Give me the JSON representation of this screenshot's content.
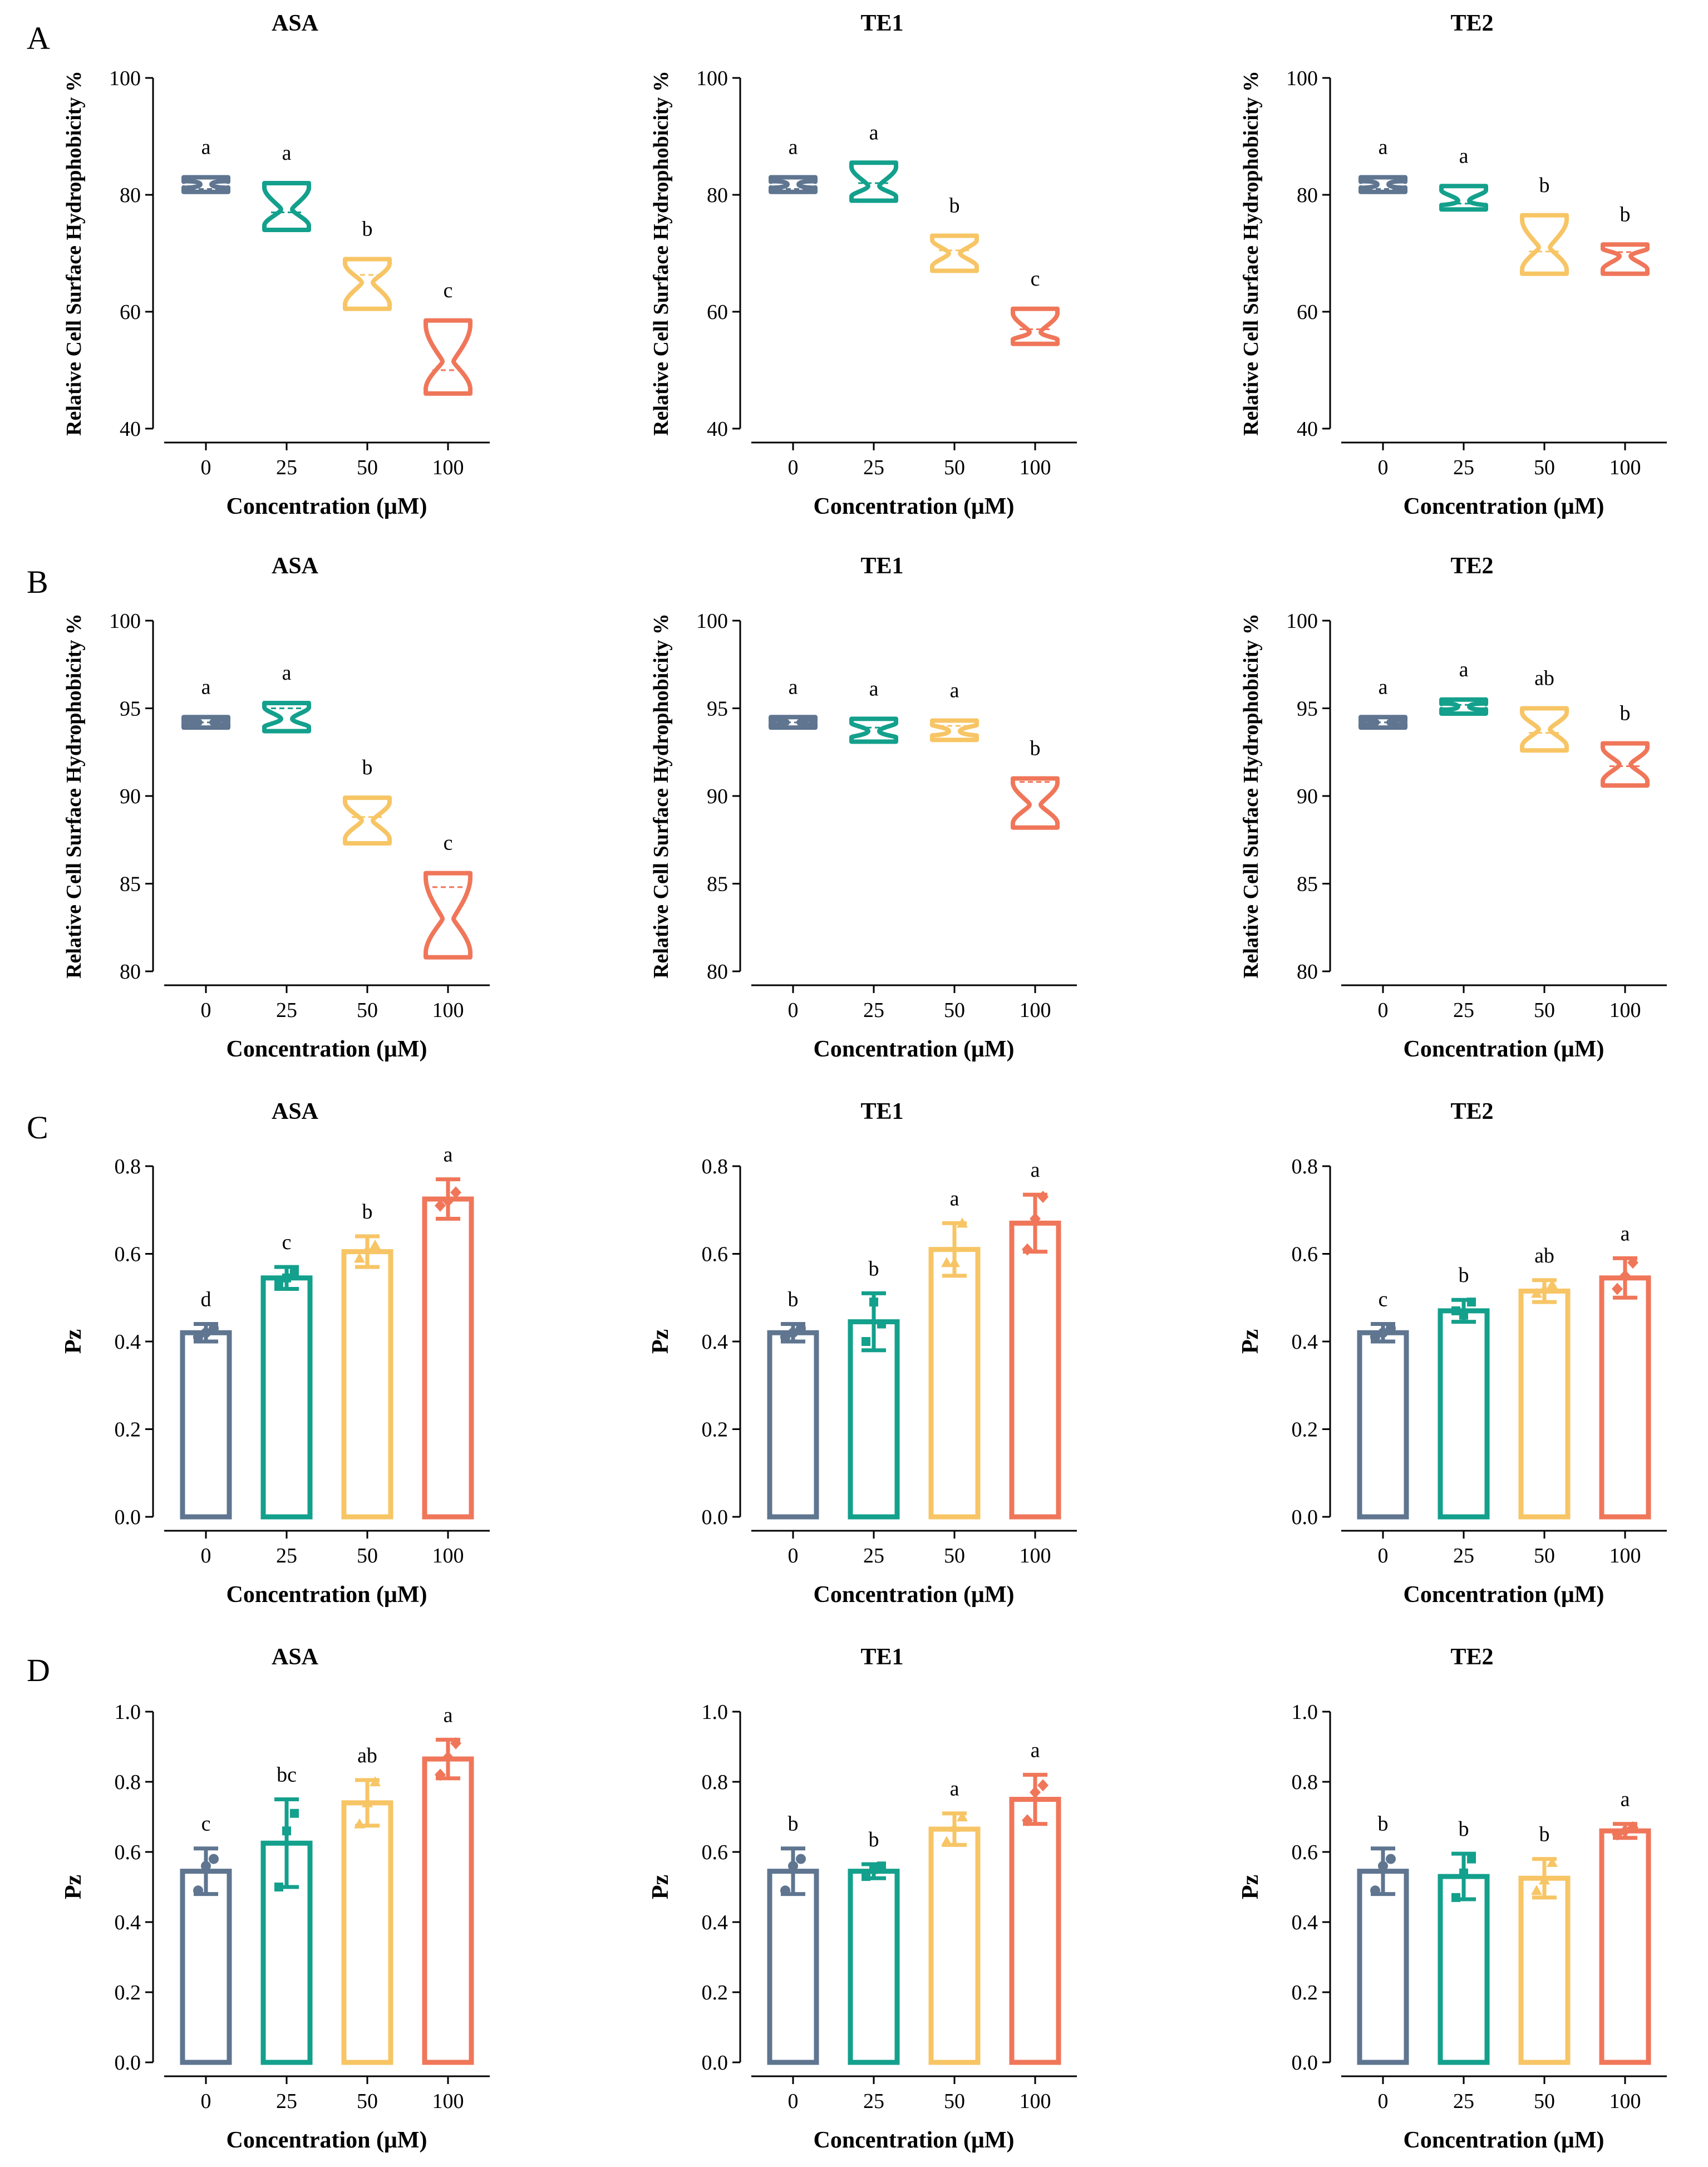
{
  "colors": [
    "#5f7590",
    "#13a08c",
    "#f7c565",
    "#f0765a"
  ],
  "panels": [
    {
      "letter": "A",
      "chart_type": "violin",
      "ylim": [
        40,
        100
      ],
      "yticks": [
        "40",
        "60",
        "80",
        "100"
      ],
      "ylabel": "Relative Cell Surface Hydrophobicity %",
      "xlabel": "Concentration (μM)",
      "categories": [
        "0",
        "25",
        "50",
        "100"
      ],
      "charts": [
        {
          "title": "ASA",
          "series": [
            {
              "min": 80.5,
              "max": 83,
              "mean": 81,
              "neck": 81.8,
              "sig": "a"
            },
            {
              "min": 74,
              "max": 82,
              "mean": 77,
              "neck": 77.5,
              "sig": "a"
            },
            {
              "min": 60.5,
              "max": 69,
              "mean": 66.3,
              "neck": 65,
              "sig": "b"
            },
            {
              "min": 46,
              "max": 58.5,
              "mean": 50,
              "neck": 51.5,
              "sig": "c"
            }
          ]
        },
        {
          "title": "TE1",
          "series": [
            {
              "min": 80.5,
              "max": 83,
              "mean": 81,
              "neck": 81.8,
              "sig": "a"
            },
            {
              "min": 79,
              "max": 85.5,
              "mean": 82,
              "neck": 81.5,
              "sig": "a"
            },
            {
              "min": 67,
              "max": 73,
              "mean": 70.5,
              "neck": 70,
              "sig": "b"
            },
            {
              "min": 54.5,
              "max": 60.5,
              "mean": 57,
              "neck": 56.5,
              "sig": "c"
            }
          ]
        },
        {
          "title": "TE2",
          "series": [
            {
              "min": 80.5,
              "max": 83,
              "mean": 81,
              "neck": 81.8,
              "sig": "a"
            },
            {
              "min": 77.5,
              "max": 81.5,
              "mean": 78.5,
              "neck": 79,
              "sig": "a"
            },
            {
              "min": 66.5,
              "max": 76.5,
              "mean": 70.3,
              "neck": 71,
              "sig": "b"
            },
            {
              "min": 66.5,
              "max": 71.5,
              "mean": 70.2,
              "neck": 69.5,
              "sig": "b"
            }
          ]
        }
      ]
    },
    {
      "letter": "B",
      "chart_type": "violin",
      "ylim": [
        80,
        100
      ],
      "yticks": [
        "80",
        "85",
        "90",
        "95",
        "100"
      ],
      "ylabel": "Relative Cell Surface Hydrophobicity %",
      "xlabel": "Concentration (μM)",
      "categories": [
        "0",
        "25",
        "50",
        "100"
      ],
      "charts": [
        {
          "title": "ASA",
          "series": [
            {
              "min": 93.9,
              "max": 94.5,
              "mean": 94.2,
              "neck": 94.2,
              "sig": "a"
            },
            {
              "min": 93.7,
              "max": 95.3,
              "mean": 95,
              "neck": 94.4,
              "sig": "a"
            },
            {
              "min": 87.3,
              "max": 89.9,
              "mean": 88.8,
              "neck": 88.6,
              "sig": "b"
            },
            {
              "min": 80.8,
              "max": 85.6,
              "mean": 84.8,
              "neck": 83,
              "sig": "c"
            }
          ]
        },
        {
          "title": "TE1",
          "series": [
            {
              "min": 93.9,
              "max": 94.5,
              "mean": 94.2,
              "neck": 94.2,
              "sig": "a"
            },
            {
              "min": 93.1,
              "max": 94.4,
              "mean": 93.9,
              "neck": 93.7,
              "sig": "a"
            },
            {
              "min": 93.2,
              "max": 94.3,
              "mean": 94,
              "neck": 93.7,
              "sig": "a"
            },
            {
              "min": 88.2,
              "max": 91,
              "mean": 90.8,
              "neck": 89.5,
              "sig": "b"
            }
          ]
        },
        {
          "title": "TE2",
          "series": [
            {
              "min": 93.9,
              "max": 94.5,
              "mean": 94.2,
              "neck": 94.2,
              "sig": "a"
            },
            {
              "min": 94.7,
              "max": 95.5,
              "mean": 95.2,
              "neck": 95.1,
              "sig": "a"
            },
            {
              "min": 92.6,
              "max": 95,
              "mean": 93.6,
              "neck": 93.8,
              "sig": "ab"
            },
            {
              "min": 90.6,
              "max": 93,
              "mean": 91.7,
              "neck": 91.8,
              "sig": "b"
            }
          ]
        }
      ]
    },
    {
      "letter": "C",
      "chart_type": "bar",
      "ylim": [
        0,
        0.8
      ],
      "yticks": [
        "0.0",
        "0.2",
        "0.4",
        "0.6",
        "0.8"
      ],
      "ylabel": "Pz",
      "xlabel": "Concentration (μM)",
      "categories": [
        "0",
        "25",
        "50",
        "100"
      ],
      "charts": [
        {
          "title": "ASA",
          "series": [
            {
              "value": 0.42,
              "err": 0.02,
              "points": [
                0.41,
                0.43,
                0.42
              ],
              "sig": "d"
            },
            {
              "value": 0.545,
              "err": 0.025,
              "points": [
                0.53,
                0.56,
                0.545
              ],
              "sig": "c"
            },
            {
              "value": 0.605,
              "err": 0.035,
              "points": [
                0.59,
                0.62,
                0.61
              ],
              "sig": "b"
            },
            {
              "value": 0.725,
              "err": 0.045,
              "points": [
                0.71,
                0.74,
                0.72
              ],
              "sig": "a"
            }
          ]
        },
        {
          "title": "TE1",
          "series": [
            {
              "value": 0.42,
              "err": 0.02,
              "points": [
                0.41,
                0.43,
                0.42
              ],
              "sig": "b"
            },
            {
              "value": 0.445,
              "err": 0.065,
              "points": [
                0.4,
                0.44,
                0.49
              ],
              "sig": "b"
            },
            {
              "value": 0.61,
              "err": 0.06,
              "points": [
                0.58,
                0.67,
                0.58
              ],
              "sig": "a"
            },
            {
              "value": 0.67,
              "err": 0.065,
              "points": [
                0.61,
                0.73,
                0.68
              ],
              "sig": "a"
            }
          ]
        },
        {
          "title": "TE2",
          "series": [
            {
              "value": 0.42,
              "err": 0.02,
              "points": [
                0.41,
                0.43,
                0.42
              ],
              "sig": "c"
            },
            {
              "value": 0.47,
              "err": 0.025,
              "points": [
                0.47,
                0.49,
                0.46
              ],
              "sig": "b"
            },
            {
              "value": 0.515,
              "err": 0.025,
              "points": [
                0.51,
                0.53,
                0.52
              ],
              "sig": "ab"
            },
            {
              "value": 0.545,
              "err": 0.045,
              "points": [
                0.52,
                0.58,
                0.55
              ],
              "sig": "a"
            }
          ]
        }
      ]
    },
    {
      "letter": "D",
      "chart_type": "bar",
      "ylim": [
        0,
        1.0
      ],
      "yticks": [
        "0.0",
        "0.2",
        "0.4",
        "0.6",
        "0.8",
        "1.0"
      ],
      "ylabel": "Pz",
      "xlabel": "Concentration (μM)",
      "categories": [
        "0",
        "25",
        "50",
        "100"
      ],
      "charts": [
        {
          "title": "ASA",
          "series": [
            {
              "value": 0.545,
              "err": 0.065,
              "points": [
                0.49,
                0.58,
                0.56
              ],
              "sig": "c"
            },
            {
              "value": 0.625,
              "err": 0.125,
              "points": [
                0.5,
                0.71,
                0.66
              ],
              "sig": "bc"
            },
            {
              "value": 0.74,
              "err": 0.065,
              "points": [
                0.68,
                0.8,
                0.74
              ],
              "sig": "ab"
            },
            {
              "value": 0.865,
              "err": 0.055,
              "points": [
                0.82,
                0.91,
                0.87
              ],
              "sig": "a"
            }
          ]
        },
        {
          "title": "TE1",
          "series": [
            {
              "value": 0.545,
              "err": 0.065,
              "points": [
                0.49,
                0.58,
                0.56
              ],
              "sig": "b"
            },
            {
              "value": 0.545,
              "err": 0.02,
              "points": [
                0.53,
                0.56,
                0.55
              ],
              "sig": "b"
            },
            {
              "value": 0.665,
              "err": 0.045,
              "points": [
                0.63,
                0.7,
                0.67
              ],
              "sig": "a"
            },
            {
              "value": 0.75,
              "err": 0.07,
              "points": [
                0.69,
                0.79,
                0.77
              ],
              "sig": "a"
            }
          ]
        },
        {
          "title": "TE2",
          "series": [
            {
              "value": 0.545,
              "err": 0.065,
              "points": [
                0.49,
                0.58,
                0.56
              ],
              "sig": "b"
            },
            {
              "value": 0.53,
              "err": 0.065,
              "points": [
                0.47,
                0.58,
                0.54
              ],
              "sig": "b"
            },
            {
              "value": 0.525,
              "err": 0.055,
              "points": [
                0.49,
                0.57,
                0.52
              ],
              "sig": "b"
            },
            {
              "value": 0.66,
              "err": 0.02,
              "points": [
                0.65,
                0.67,
                0.66
              ],
              "sig": "a"
            }
          ]
        }
      ]
    }
  ]
}
